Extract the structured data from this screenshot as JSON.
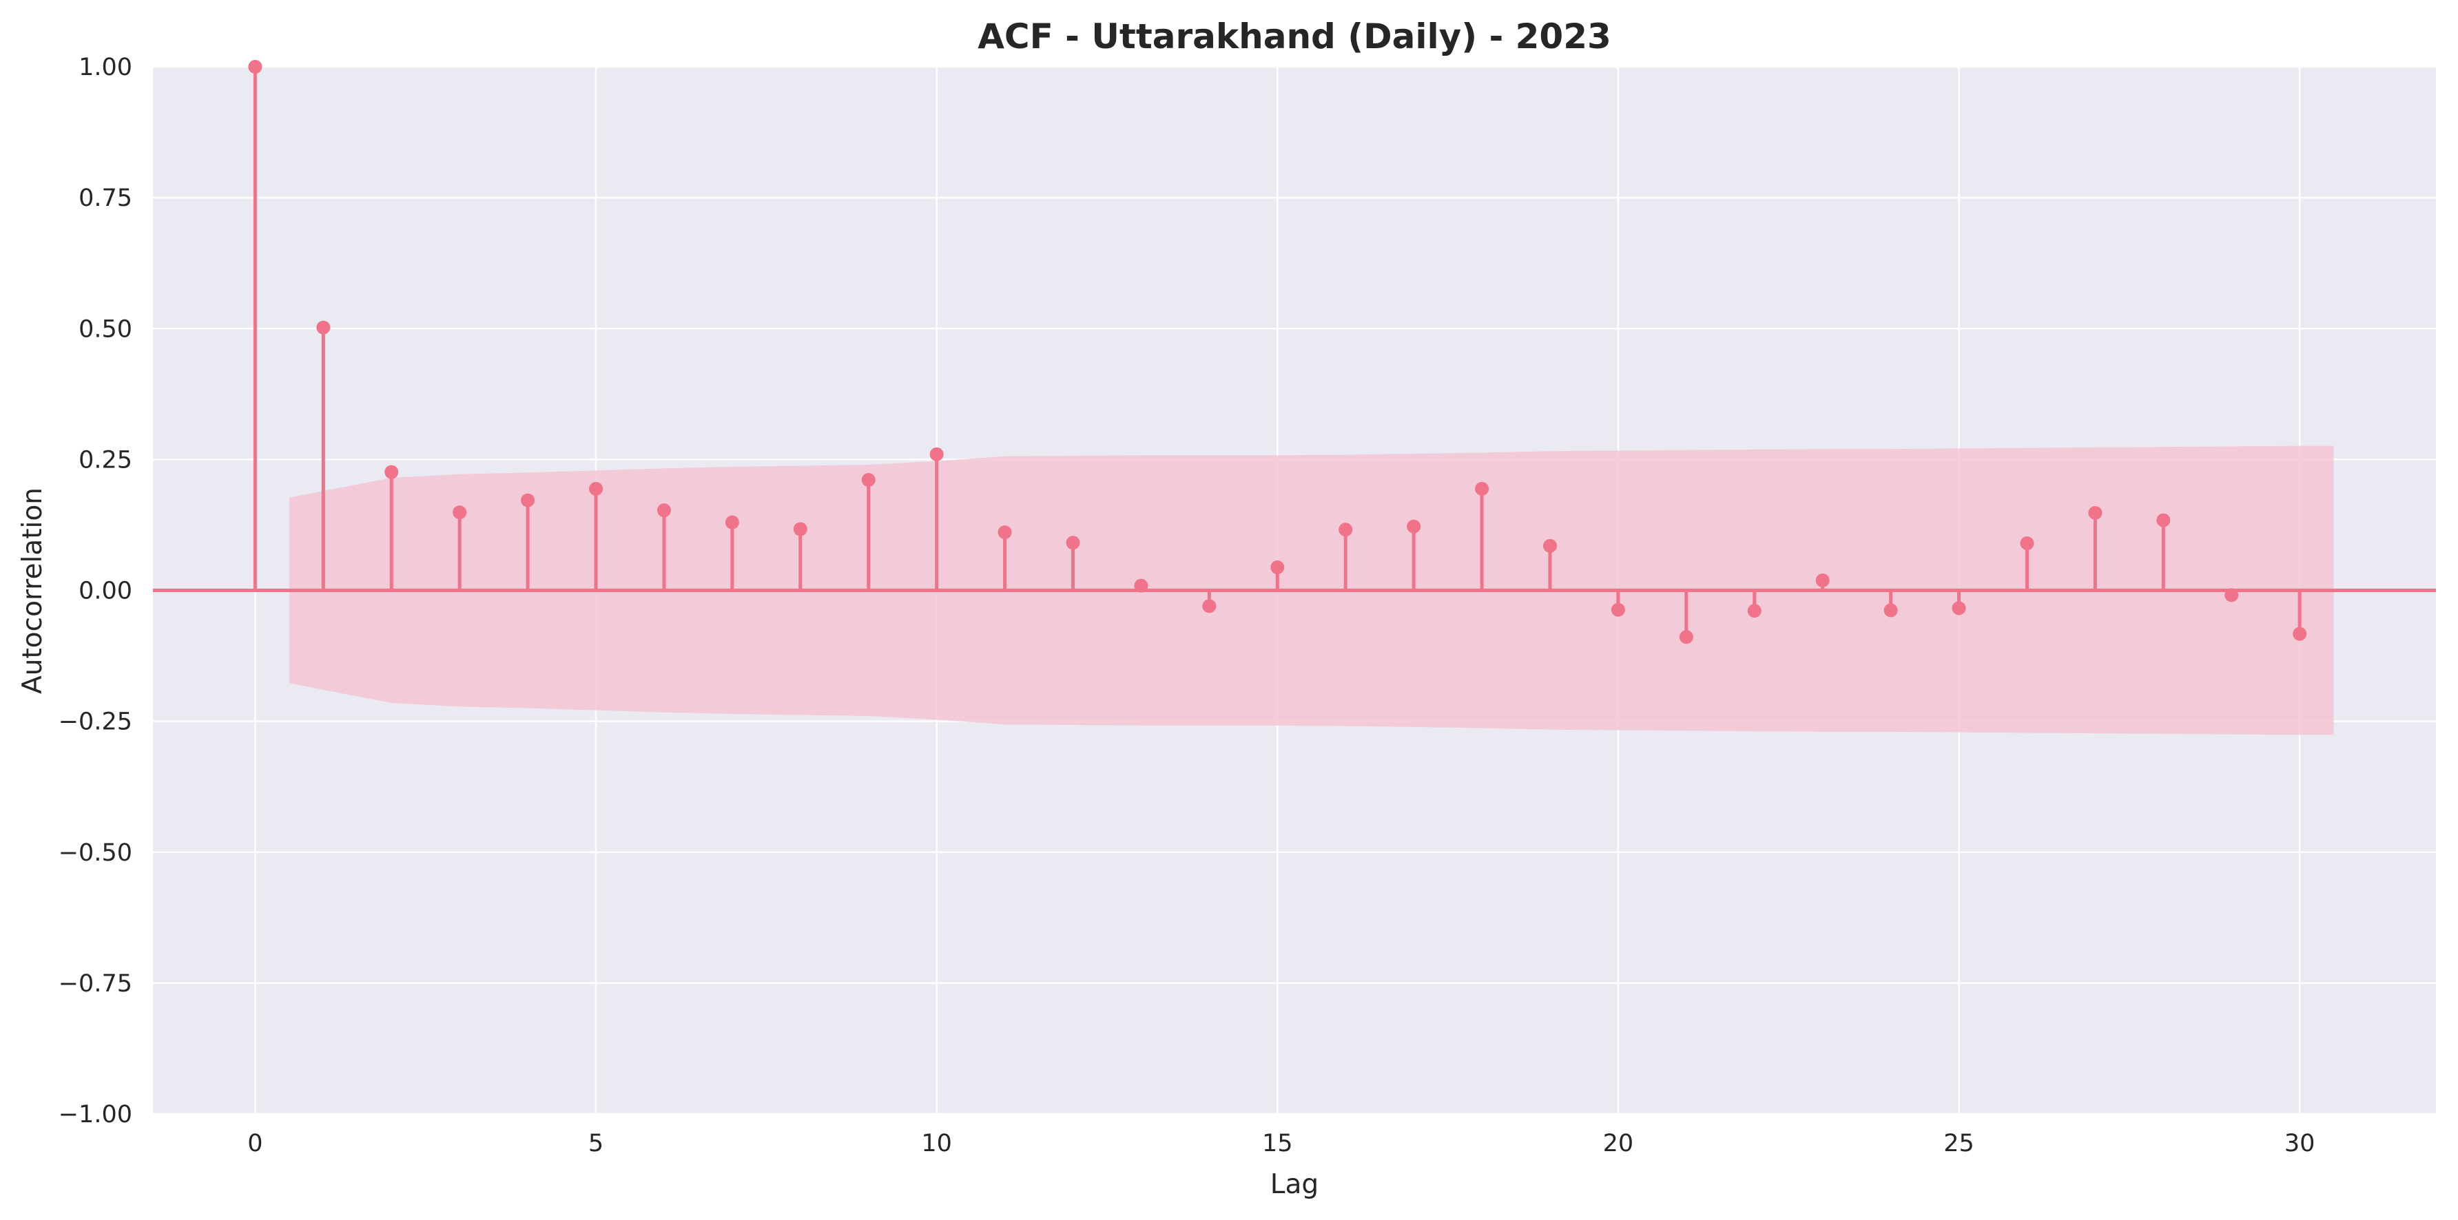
{
  "chart_data": {
    "type": "stem",
    "title": "ACF - Uttarakhand (Daily) - 2023",
    "xlabel": "Lag",
    "ylabel": "Autocorrelation",
    "xlim": [
      -1.5,
      32.0
    ],
    "ylim": [
      -1.0,
      1.0
    ],
    "x_ticks": [
      0,
      5,
      10,
      15,
      20,
      25,
      30
    ],
    "y_ticks": [
      -1.0,
      -0.75,
      -0.5,
      -0.25,
      0.0,
      0.25,
      0.5,
      0.75,
      1.0
    ],
    "y_tick_labels": [
      "−1.00",
      "−0.75",
      "−0.50",
      "−0.25",
      "0.00",
      "0.25",
      "0.50",
      "0.75",
      "1.00"
    ],
    "grid": true,
    "lags": [
      0,
      1,
      2,
      3,
      4,
      5,
      6,
      7,
      8,
      9,
      10,
      11,
      12,
      13,
      14,
      15,
      16,
      17,
      18,
      19,
      20,
      21,
      22,
      23,
      24,
      25,
      26,
      27,
      28,
      29,
      30
    ],
    "values": [
      1.0,
      0.502,
      0.226,
      0.149,
      0.172,
      0.194,
      0.153,
      0.13,
      0.117,
      0.211,
      0.26,
      0.111,
      0.091,
      0.009,
      -0.03,
      0.044,
      0.116,
      0.122,
      0.194,
      0.085,
      -0.037,
      -0.089,
      -0.039,
      0.019,
      -0.038,
      -0.034,
      0.09,
      0.148,
      0.134,
      -0.009,
      -0.083
    ],
    "confidence_band": {
      "x": [
        0.5,
        1,
        2,
        3,
        4,
        5,
        6,
        7,
        8,
        9,
        10,
        11,
        12,
        13,
        14,
        15,
        16,
        17,
        18,
        19,
        20,
        21,
        22,
        23,
        24,
        25,
        26,
        27,
        28,
        29,
        30,
        30.5
      ],
      "upper": [
        0.177,
        0.19,
        0.215,
        0.222,
        0.225,
        0.229,
        0.233,
        0.236,
        0.238,
        0.24,
        0.247,
        0.256,
        0.257,
        0.258,
        0.258,
        0.258,
        0.259,
        0.261,
        0.263,
        0.266,
        0.267,
        0.268,
        0.269,
        0.27,
        0.27,
        0.271,
        0.272,
        0.273,
        0.274,
        0.275,
        0.276,
        0.276
      ]
    },
    "colors": {
      "stem": "#f07389",
      "band": "#f4c6d4",
      "plot_background": "#eaeaf2",
      "grid": "#ffffff"
    }
  }
}
